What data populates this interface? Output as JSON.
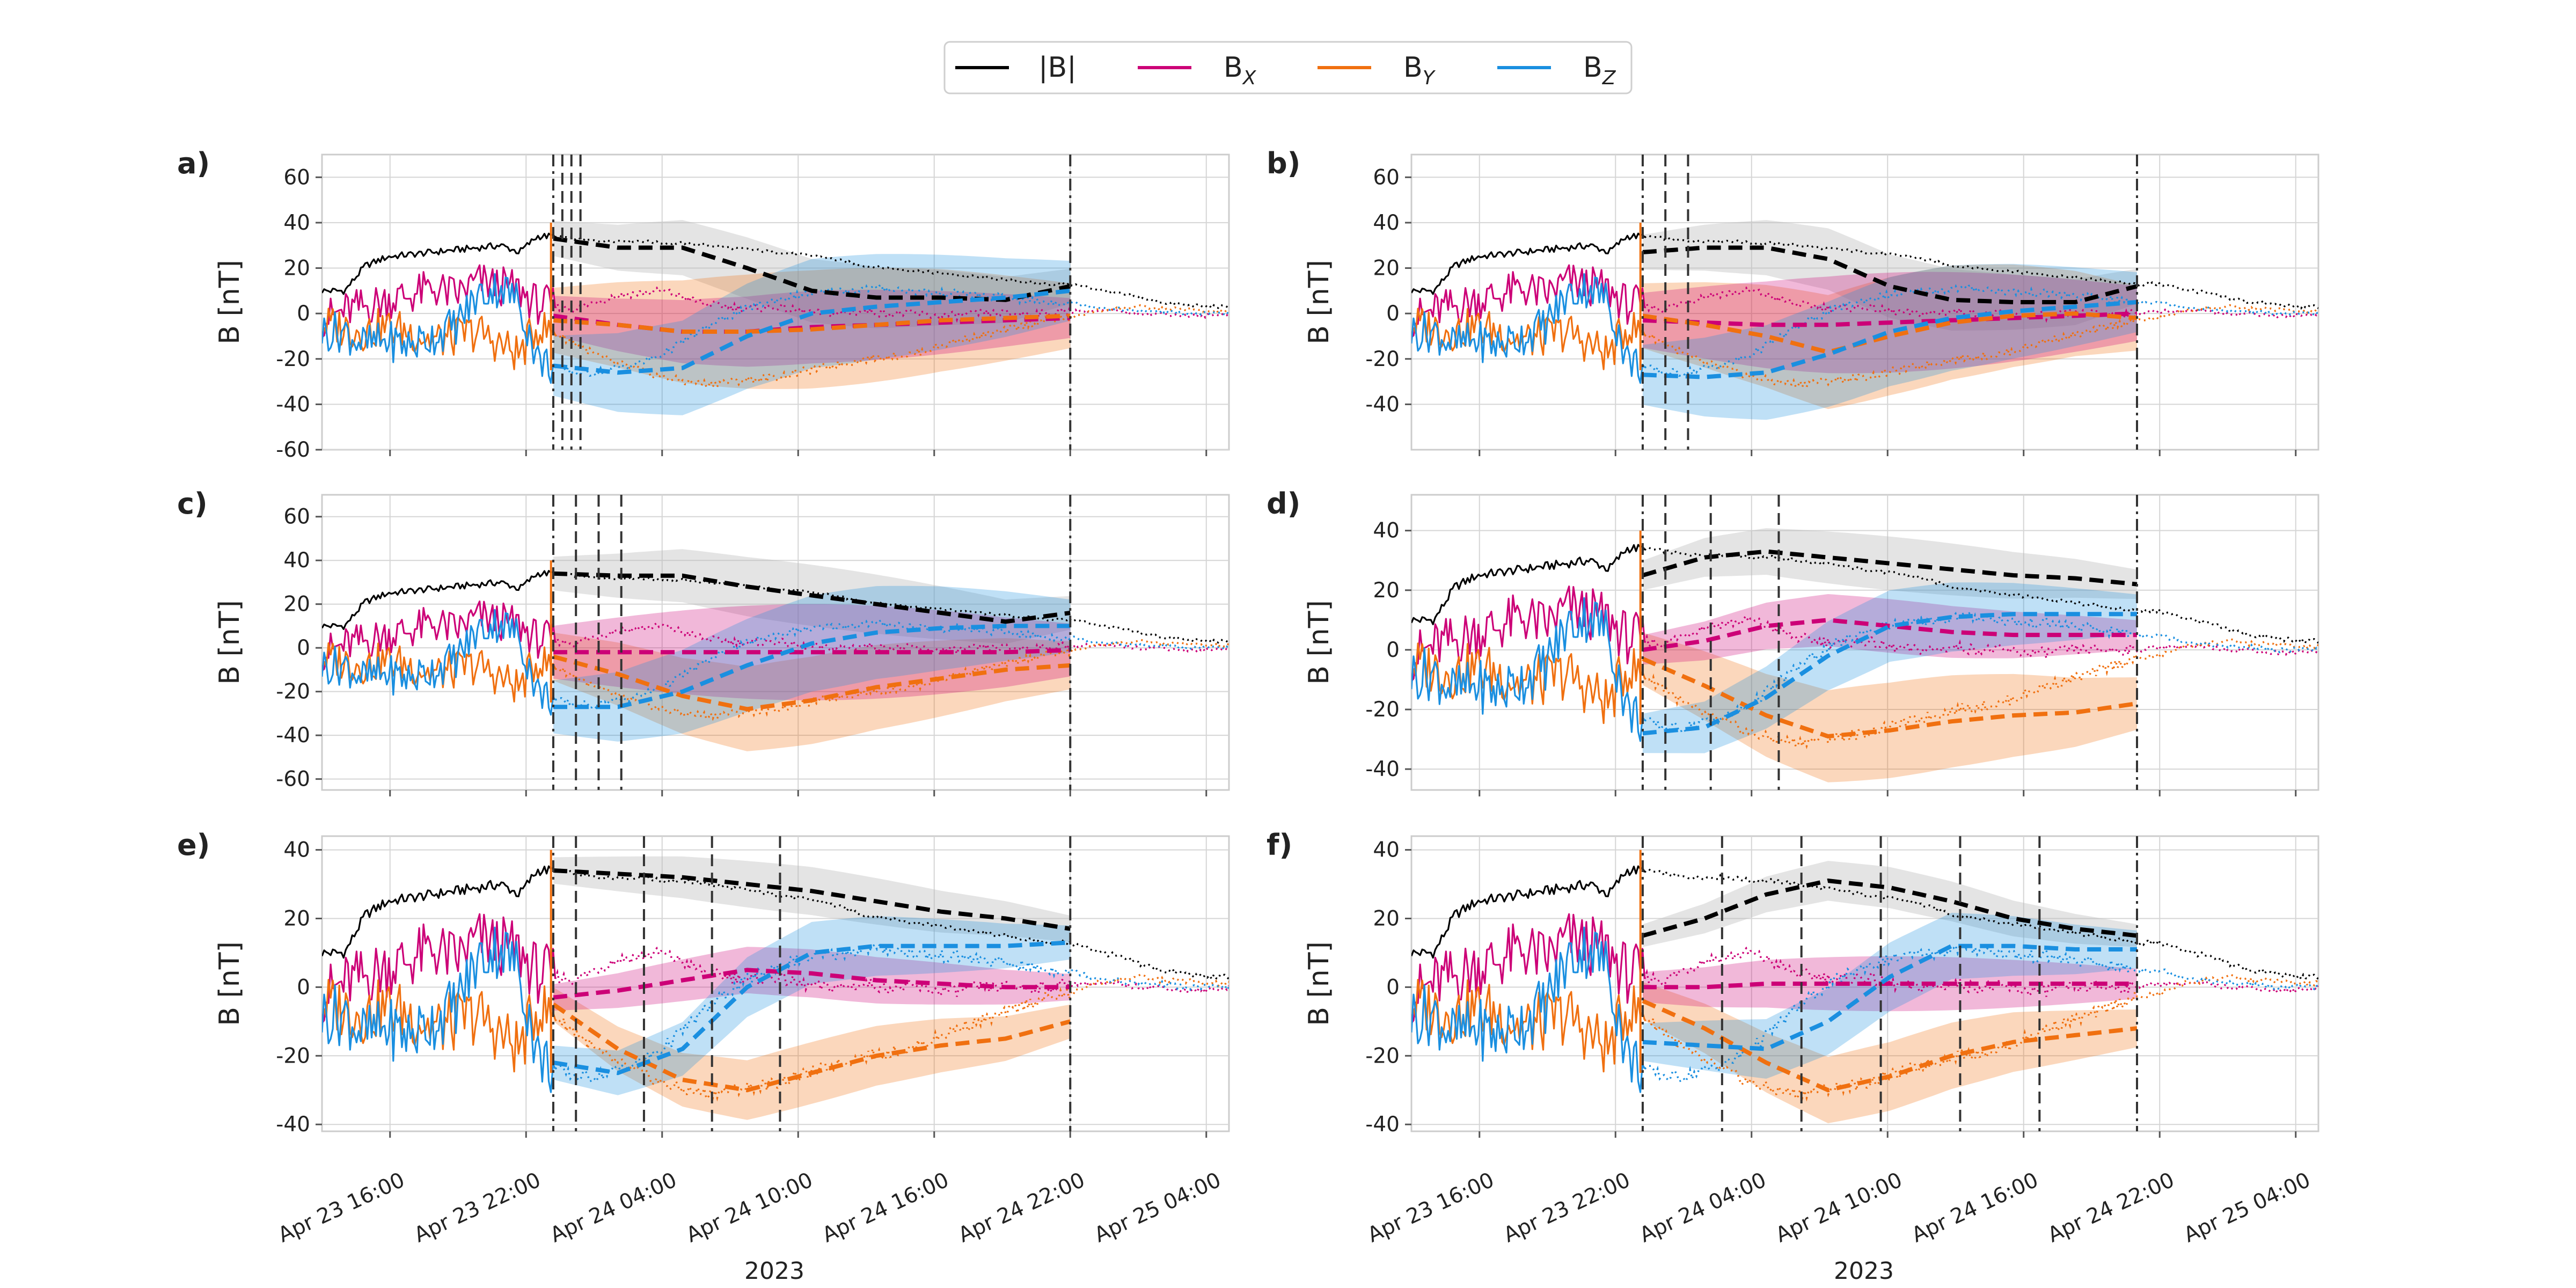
{
  "legend": {
    "items": [
      {
        "name": "magnitude",
        "label": "|B|",
        "sub": "",
        "color": "#000000"
      },
      {
        "name": "bx",
        "label": "B",
        "sub": "X",
        "color": "#cc0077"
      },
      {
        "name": "by",
        "label": "B",
        "sub": "Y",
        "color": "#f07010"
      },
      {
        "name": "bz",
        "label": "B",
        "sub": "Z",
        "color": "#1a8fe0"
      }
    ]
  },
  "colors": {
    "magnitude": "#000000",
    "bx": "#cc0077",
    "by": "#f07010",
    "bz": "#1a8fe0",
    "grid": "#d5d5d5",
    "axis_frame": "#cccccc",
    "boundary_line": "#333333",
    "magnitude_band": "#b8b8b8"
  },
  "chart_data": {
    "type": "line",
    "title": "",
    "xlabel": "2023",
    "x_units": "hours since Apr 23 00:00 (2023)",
    "x_range": [
      13.0,
      53.0
    ],
    "x_ticks": [
      {
        "value": 16,
        "label": "Apr 23 16:00"
      },
      {
        "value": 22,
        "label": "Apr 23 22:00"
      },
      {
        "value": 28,
        "label": "Apr 24 04:00"
      },
      {
        "value": 34,
        "label": "Apr 24 10:00"
      },
      {
        "value": 40,
        "label": "Apr 24 16:00"
      },
      {
        "value": 46,
        "label": "Apr 24 22:00"
      },
      {
        "value": 52,
        "label": "Apr 25 04:00"
      }
    ],
    "observed": {
      "x": [
        13.2,
        14.0,
        14.9,
        15.9,
        16.9,
        17.9,
        18.9,
        19.9,
        20.9,
        21.7,
        22.5,
        23.3,
        24.2,
        25.0,
        26.0,
        27.0,
        28.0,
        29.0,
        30.0,
        31.0,
        32.0,
        33.0,
        34.0,
        35.0,
        36.0,
        37.0,
        38.0,
        39.0,
        40.0,
        41.0,
        42.0,
        43.0,
        44.0,
        45.0,
        46.0,
        47.0,
        48.0,
        49.0,
        50.0,
        51.0,
        52.0,
        53.0
      ],
      "B": [
        10,
        10,
        21,
        25,
        26,
        27,
        28,
        29,
        30,
        27,
        34,
        34,
        33,
        32,
        32,
        32,
        31,
        31,
        30,
        29,
        28,
        27,
        26,
        25,
        23,
        21,
        20,
        19,
        18,
        17,
        16,
        15,
        14,
        13,
        13,
        11,
        9,
        7,
        5,
        4,
        3,
        3
      ],
      "Bx": [
        -2,
        1,
        3,
        6,
        8,
        11,
        8,
        14,
        12,
        10,
        4,
        3,
        2,
        5,
        8,
        9,
        10,
        7,
        4,
        3,
        2,
        3,
        1,
        0,
        0,
        1,
        0,
        0,
        -1,
        -1,
        0,
        0,
        0,
        0,
        1,
        1,
        1,
        0,
        0,
        -1,
        -1,
        0
      ],
      "By": [
        -5,
        -6,
        -8,
        -6,
        -8,
        -12,
        -10,
        -8,
        -14,
        -18,
        -6,
        -9,
        -13,
        -18,
        -22,
        -25,
        -28,
        -30,
        -31,
        -30,
        -29,
        -28,
        -26,
        -24,
        -22,
        -20,
        -19,
        -18,
        -15,
        -12,
        -10,
        -8,
        -5,
        -3,
        -2,
        1,
        2,
        3,
        2,
        2,
        1,
        1
      ],
      "Bz": [
        -8,
        -8,
        -14,
        -12,
        -14,
        -10,
        -5,
        8,
        12,
        5,
        -20,
        -24,
        -26,
        -26,
        -24,
        -22,
        -18,
        -12,
        -6,
        -1,
        3,
        6,
        8,
        9,
        10,
        11,
        11,
        10,
        9,
        9,
        8,
        7,
        6,
        5,
        5,
        3,
        2,
        1,
        1,
        0,
        0,
        0
      ]
    },
    "panels": [
      {
        "label": "a)",
        "ylabel": "B [nT]",
        "ylim": [
          -60,
          70
        ],
        "yticks": [
          -60,
          -40,
          -20,
          0,
          20,
          40,
          60
        ],
        "dashdot": [
          23.2,
          46.0
        ],
        "dashed": [
          23.6,
          24.0,
          24.4
        ],
        "t_end": 46.0,
        "fit": {
          "B": [
            33,
            29,
            29,
            20,
            10,
            7,
            7,
            6,
            12
          ],
          "Bx": [
            -1,
            -5,
            -8,
            -8,
            -6,
            -5,
            -4,
            -3,
            -2
          ],
          "By": [
            -3,
            -5,
            -8,
            -8,
            -7,
            -5,
            -3,
            -2,
            -1
          ],
          "Bz": [
            -23,
            -26,
            -24,
            -10,
            0,
            3,
            5,
            7,
            10
          ]
        },
        "band_width": {
          "B": 14,
          "Bx": 16,
          "By": 26,
          "Bz": 24
        }
      },
      {
        "label": "b)",
        "ylabel": "B [nT]",
        "ylim": [
          -60,
          70
        ],
        "yticks": [
          -40,
          -20,
          0,
          20,
          40,
          60
        ],
        "dashdot": [
          23.2,
          45.0
        ],
        "dashed": [
          24.2,
          25.2
        ],
        "t_end": 45.0,
        "fit": {
          "B": [
            27,
            29,
            29,
            24,
            12,
            6,
            5,
            5,
            12
          ],
          "Bx": [
            -3,
            -4,
            -5,
            -5,
            -4,
            -3,
            -2,
            -1,
            0
          ],
          "By": [
            -1,
            -5,
            -10,
            -17,
            -10,
            -4,
            -1,
            0,
            -2
          ],
          "Bz": [
            -27,
            -28,
            -26,
            -18,
            -8,
            -2,
            1,
            3,
            5
          ]
        },
        "band_width": {
          "B": 14,
          "Bx": 22,
          "By": 26,
          "Bz": 24
        }
      },
      {
        "label": "c)",
        "ylabel": "B [nT]",
        "ylim": [
          -65,
          70
        ],
        "yticks": [
          -60,
          -40,
          -20,
          0,
          20,
          40,
          60
        ],
        "dashdot": [
          23.2,
          46.0
        ],
        "dashed": [
          24.2,
          25.2,
          26.2
        ],
        "t_end": 46.0,
        "fit": {
          "B": [
            34,
            33,
            33,
            28,
            24,
            20,
            16,
            12,
            16
          ],
          "Bx": [
            -2,
            -2,
            -2,
            -2,
            -2,
            -2,
            -2,
            -2,
            -1
          ],
          "By": [
            -4,
            -12,
            -22,
            -28,
            -24,
            -18,
            -14,
            -10,
            -8
          ],
          "Bz": [
            -27,
            -27,
            -20,
            -8,
            2,
            7,
            9,
            10,
            10
          ]
        },
        "band_width": {
          "B": 14,
          "Bx": 22,
          "By": 20,
          "Bz": 22
        }
      },
      {
        "label": "d)",
        "ylabel": "B [nT]",
        "ylim": [
          -47,
          52
        ],
        "yticks": [
          -40,
          -20,
          0,
          20,
          40
        ],
        "dashdot": [
          23.2,
          45.0
        ],
        "dashed": [
          24.2,
          26.2,
          29.2
        ],
        "t_end": 45.0,
        "fit": {
          "B": [
            25,
            31,
            33,
            31,
            29,
            27,
            25,
            24,
            22
          ],
          "Bx": [
            0,
            3,
            8,
            10,
            8,
            6,
            5,
            5,
            5
          ],
          "By": [
            -3,
            -12,
            -22,
            -29,
            -27,
            -24,
            -22,
            -21,
            -18
          ],
          "Bz": [
            -28,
            -26,
            -16,
            -2,
            8,
            11,
            12,
            12,
            12
          ]
        },
        "band_width": {
          "B": 9,
          "Bx": 9,
          "By": 16,
          "Bz": 12
        }
      },
      {
        "label": "e)",
        "ylabel": "B [nT]",
        "ylim": [
          -42,
          44
        ],
        "yticks": [
          -40,
          -20,
          0,
          20,
          40
        ],
        "dashdot": [
          23.2,
          46.0
        ],
        "dashed": [
          24.2,
          27.2,
          30.2,
          33.2
        ],
        "t_end": 46.0,
        "fit": {
          "B": [
            34,
            33,
            32,
            30,
            28,
            25,
            22,
            20,
            17
          ],
          "Bx": [
            -3,
            -1,
            2,
            5,
            4,
            2,
            1,
            0,
            0
          ],
          "By": [
            -5,
            -18,
            -27,
            -30,
            -25,
            -20,
            -17,
            -15,
            -10
          ],
          "Bz": [
            -22,
            -25,
            -18,
            0,
            10,
            12,
            12,
            12,
            13
          ]
        },
        "band_width": {
          "B": 7,
          "Bx": 7,
          "By": 9,
          "Bz": 9
        }
      },
      {
        "label": "f)",
        "ylabel": "B [nT]",
        "ylim": [
          -42,
          44
        ],
        "yticks": [
          -40,
          -20,
          0,
          20,
          40
        ],
        "dashdot": [
          23.2,
          45.0
        ],
        "dashed": [
          26.7,
          30.2,
          33.7,
          37.2,
          40.7
        ],
        "t_end": 45.0,
        "fit": {
          "B": [
            15,
            20,
            27,
            31,
            29,
            25,
            20,
            17,
            15
          ],
          "Bx": [
            0,
            0,
            1,
            1,
            1,
            1,
            1,
            1,
            1
          ],
          "By": [
            -4,
            -12,
            -22,
            -30,
            -26,
            -20,
            -16,
            -14,
            -12
          ],
          "Bz": [
            -16,
            -17,
            -18,
            -10,
            3,
            12,
            12,
            11,
            11
          ]
        },
        "band_width": {
          "B": 6,
          "Bx": 8,
          "By": 10,
          "Bz": 10
        }
      }
    ]
  }
}
